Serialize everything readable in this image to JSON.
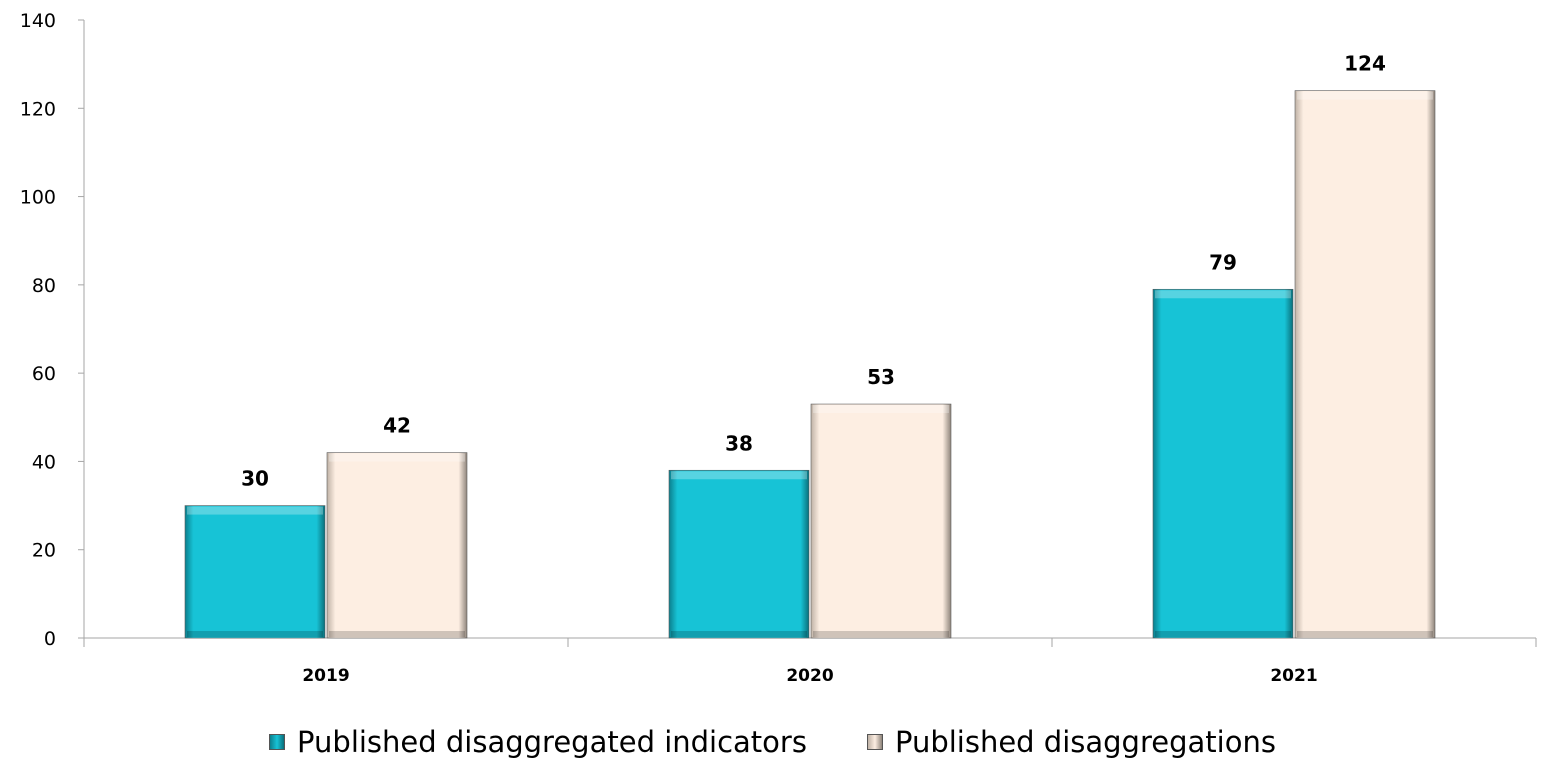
{
  "chart_data": {
    "type": "bar",
    "categories": [
      "2019",
      "2020",
      "2021"
    ],
    "series": [
      {
        "name": "Published disaggregated indicators",
        "values": [
          30,
          38,
          79
        ],
        "color": "#17c3d6"
      },
      {
        "name": "Published disaggregations",
        "values": [
          42,
          53,
          124
        ],
        "color": "#fdeee2"
      }
    ],
    "ylim": [
      0,
      140
    ],
    "yticks": [
      0,
      20,
      40,
      60,
      80,
      100,
      120,
      140
    ],
    "grid": false,
    "legend_position": "bottom",
    "data_labels": true
  }
}
